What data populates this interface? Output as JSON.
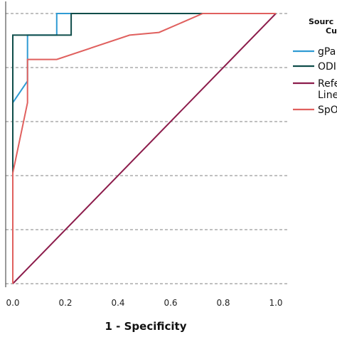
{
  "chart_data": {
    "type": "line",
    "xlabel": "1 - Specificity",
    "ylabel": "",
    "xlim": [
      0,
      1
    ],
    "ylim": [
      0,
      1
    ],
    "x_ticks": [
      0.0,
      0.2,
      0.4,
      0.6,
      0.8,
      1.0
    ],
    "x_tick_labels": [
      "0.0",
      "0.2",
      "0.4",
      "0.6",
      "0.8",
      "1.0"
    ],
    "y_gridlines": [
      0.0,
      0.2,
      0.4,
      0.6,
      0.8,
      1.0
    ],
    "grid": "horizontal dashed",
    "legend": {
      "title_lines": [
        "Sourc",
        "Cu"
      ],
      "placement": "right",
      "entries": [
        {
          "label_lines": [
            "gPa"
          ],
          "color": "#2f9bd3"
        },
        {
          "label_lines": [
            "ODI"
          ],
          "color": "#0f4d4a"
        },
        {
          "label_lines": [
            "Refe",
            "Line"
          ],
          "color": "#8c1c4b"
        },
        {
          "label_lines": [
            "SpO"
          ],
          "color": "#e0605e"
        }
      ]
    },
    "series": [
      {
        "key": "gpa",
        "color": "#2f9bd3",
        "x": [
          0,
          0,
          0.056,
          0.056,
          0.056,
          0.167,
          0.167,
          1.0
        ],
        "y": [
          0,
          0.67,
          0.75,
          0.92,
          0.92,
          0.92,
          1.0,
          1.0
        ]
      },
      {
        "key": "odi",
        "color": "#0f4d4a",
        "x": [
          0,
          0,
          0.222,
          0.222,
          1.0
        ],
        "y": [
          0,
          0.92,
          0.92,
          1.0,
          1.0
        ]
      },
      {
        "key": "reference",
        "color": "#8c1c4b",
        "x": [
          0,
          1
        ],
        "y": [
          0,
          1
        ]
      },
      {
        "key": "spo",
        "color": "#e0605e",
        "x": [
          0,
          0,
          0.056,
          0.056,
          0.167,
          0.444,
          0.556,
          0.722,
          1.0
        ],
        "y": [
          0,
          0.41,
          0.67,
          0.83,
          0.83,
          0.92,
          0.93,
          1.0,
          1.0
        ]
      }
    ]
  }
}
